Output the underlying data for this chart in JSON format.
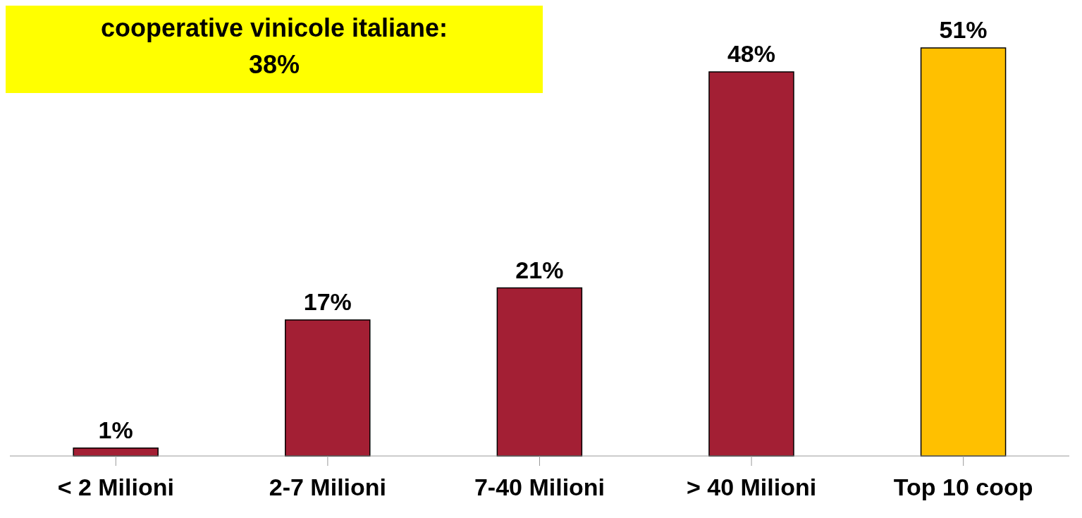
{
  "chart_data": {
    "type": "bar",
    "categories": [
      "< 2 Milioni",
      "2-7 Milioni",
      "7-40 Milioni",
      "> 40 Milioni",
      "Top 10 coop"
    ],
    "values": [
      1,
      17,
      21,
      48,
      51
    ],
    "colors": [
      "#a31f34",
      "#a31f34",
      "#a31f34",
      "#a31f34",
      "#ffc000"
    ],
    "data_labels": true,
    "value_labels": [
      "1%",
      "17%",
      "21%",
      "48%",
      "51%"
    ],
    "annotations": [
      "cooperative vinicole italiane:",
      "38%"
    ]
  }
}
